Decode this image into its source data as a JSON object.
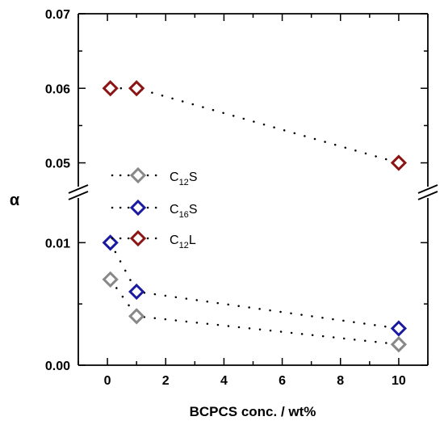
{
  "chart_data": {
    "type": "scatter",
    "title": "",
    "xlabel": "BCPCS conc. / wt%",
    "ylabel": "α",
    "xlim": [
      -1,
      11
    ],
    "ylim_segments": [
      [
        0.0,
        0.012
      ],
      [
        0.048,
        0.07
      ]
    ],
    "axis_break": "y-axis between 0.012 and 0.048, shown by double slash marks",
    "x_ticks": [
      "0",
      "2",
      "4",
      "6",
      "8",
      "10"
    ],
    "y_ticks": [
      "0.00",
      "0.01",
      "0.05",
      "0.06",
      "0.07"
    ],
    "grid": false,
    "legend_position": "center-left",
    "marker": "open diamond",
    "line_style": "dotted",
    "series": [
      {
        "name": "C12S",
        "label_main": "C",
        "label_sub": "12",
        "label_tail": "S",
        "color": "#888888",
        "x": [
          0.1,
          1,
          10
        ],
        "y": [
          0.007,
          0.004,
          0.0017
        ]
      },
      {
        "name": "C16S",
        "label_main": "C",
        "label_sub": "16",
        "label_tail": "S",
        "color": "#1a1aa0",
        "x": [
          0.1,
          1,
          10
        ],
        "y": [
          0.01,
          0.006,
          0.003
        ]
      },
      {
        "name": "C12L",
        "label_main": "C",
        "label_sub": "12",
        "label_tail": "L",
        "color": "#8b1414",
        "x": [
          0.1,
          1,
          10
        ],
        "y": [
          0.06,
          0.06,
          0.05
        ]
      }
    ]
  }
}
